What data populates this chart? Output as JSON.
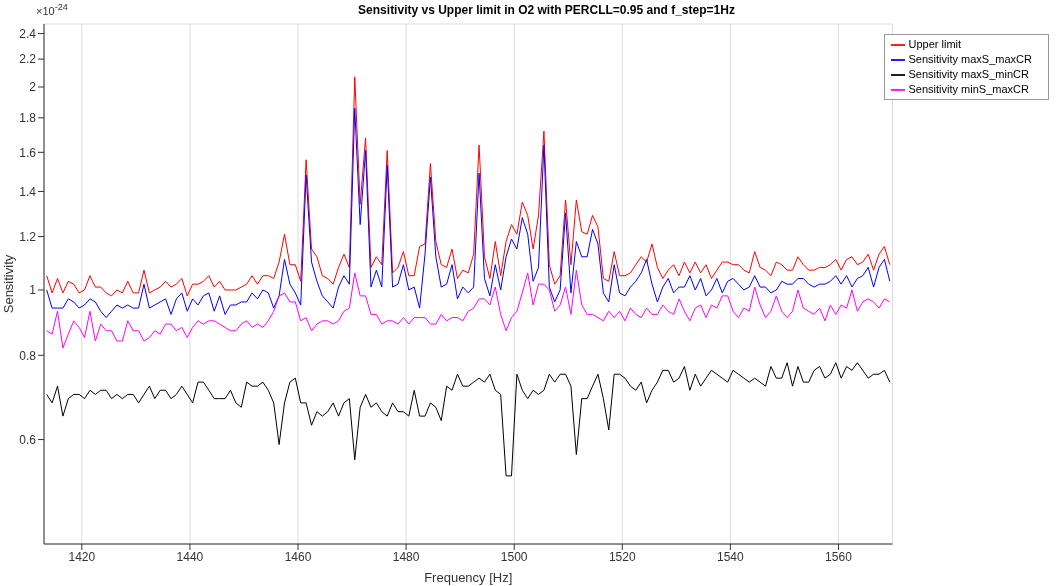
{
  "chart_data": {
    "type": "line",
    "title": "Sensitivity vs Upper limit in O2 with PERCLL=0.95 and f_step=1Hz",
    "xlabel": "Frequency [Hz]",
    "ylabel": "Sensitivity",
    "annotations": [
      "×10$^{-24}$"
    ],
    "x": [
      1413.5,
      1414.5,
      1415.5,
      1416.5,
      1417.5,
      1418.5,
      1419.5,
      1420.5,
      1421.5,
      1422.5,
      1423.5,
      1424.5,
      1425.5,
      1426.5,
      1427.5,
      1428.5,
      1429.5,
      1430.5,
      1431.5,
      1432.5,
      1433.5,
      1434.5,
      1435.5,
      1436.5,
      1437.5,
      1438.5,
      1439.5,
      1440.5,
      1441.5,
      1442.5,
      1443.5,
      1444.5,
      1445.5,
      1446.5,
      1447.5,
      1448.5,
      1449.5,
      1450.5,
      1451.5,
      1452.5,
      1453.5,
      1454.5,
      1455.5,
      1456.5,
      1457.5,
      1458.5,
      1459.5,
      1460.5,
      1461.5,
      1462.5,
      1463.5,
      1464.5,
      1465.5,
      1466.5,
      1467.5,
      1468.5,
      1469.5,
      1470.5,
      1471.5,
      1472.5,
      1473.5,
      1474.5,
      1475.5,
      1476.5,
      1477.5,
      1478.5,
      1479.5,
      1480.5,
      1481.5,
      1482.5,
      1483.5,
      1484.5,
      1485.5,
      1486.5,
      1487.5,
      1488.5,
      1489.5,
      1490.5,
      1491.5,
      1492.5,
      1493.5,
      1494.5,
      1495.5,
      1496.5,
      1497.5,
      1498.5,
      1499.5,
      1500.5,
      1501.5,
      1502.5,
      1503.5,
      1504.5,
      1505.5,
      1506.5,
      1507.5,
      1508.5,
      1509.5,
      1510.5,
      1511.5,
      1512.5,
      1513.5,
      1514.5,
      1515.5,
      1516.5,
      1517.5,
      1518.5,
      1519.5,
      1520.5,
      1521.5,
      1522.5,
      1523.5,
      1524.5,
      1525.5,
      1526.5,
      1527.5,
      1528.5,
      1529.5,
      1530.5,
      1531.5,
      1532.5,
      1533.5,
      1534.5,
      1535.5,
      1536.5,
      1537.5,
      1538.5,
      1539.5,
      1540.5,
      1541.5,
      1542.5,
      1543.5,
      1544.5,
      1545.5,
      1546.5,
      1547.5,
      1548.5,
      1549.5,
      1550.5,
      1551.5,
      1552.5,
      1553.5,
      1554.5,
      1555.5,
      1556.5,
      1557.5,
      1558.5,
      1559.5,
      1560.5,
      1561.5,
      1562.5,
      1563.5,
      1564.5,
      1565.5,
      1566.5,
      1567.5,
      1568.5,
      1569.5
    ],
    "series": [
      {
        "name": "Upper limit",
        "color": "#ff0000",
        "values": [
          1.05,
          0.99,
          1.04,
          0.99,
          1.03,
          1.02,
          0.99,
          1.0,
          1.05,
          1.01,
          1.01,
          0.99,
          0.98,
          1.0,
          0.99,
          1.03,
          0.99,
          0.99,
          1.07,
          0.99,
          1.0,
          1.01,
          1.03,
          1.01,
          1.02,
          1.04,
          0.98,
          1.02,
          1.02,
          1.03,
          1.05,
          1.01,
          1.03,
          1.0,
          1.0,
          1.0,
          1.01,
          1.02,
          1.05,
          1.02,
          1.05,
          1.05,
          1.04,
          1.1,
          1.21,
          1.09,
          1.09,
          1.03,
          1.56,
          1.15,
          1.12,
          1.05,
          1.04,
          1.02,
          1.08,
          1.13,
          1.08,
          2.07,
          1.34,
          1.68,
          1.08,
          1.12,
          1.09,
          1.61,
          1.06,
          1.08,
          1.14,
          1.05,
          1.05,
          1.16,
          1.17,
          1.54,
          1.18,
          1.09,
          1.08,
          1.15,
          1.04,
          1.07,
          1.06,
          1.13,
          1.64,
          1.12,
          1.04,
          1.18,
          1.05,
          1.18,
          1.25,
          1.21,
          1.35,
          1.29,
          1.15,
          1.29,
          1.72,
          1.09,
          1.02,
          1.05,
          1.36,
          1.09,
          1.36,
          1.22,
          1.21,
          1.29,
          1.24,
          1.04,
          1.03,
          1.14,
          1.05,
          1.05,
          1.06,
          1.09,
          1.12,
          1.1,
          1.17,
          1.08,
          1.04,
          1.07,
          1.09,
          1.05,
          1.1,
          1.06,
          1.1,
          1.06,
          1.09,
          1.04,
          1.07,
          1.1,
          1.1,
          1.09,
          1.09,
          1.07,
          1.06,
          1.14,
          1.08,
          1.07,
          1.05,
          1.1,
          1.09,
          1.07,
          1.07,
          1.12,
          1.09,
          1.07,
          1.07,
          1.08,
          1.08,
          1.09,
          1.11,
          1.07,
          1.11,
          1.12,
          1.09,
          1.1,
          1.13,
          1.07,
          1.13,
          1.16,
          1.09
        ]
      },
      {
        "name": "Sensitivity maxS_maxCR",
        "color": "#0000ff",
        "values": [
          1.0,
          0.94,
          0.94,
          0.94,
          0.97,
          0.96,
          0.94,
          0.95,
          0.97,
          0.96,
          0.93,
          0.91,
          0.93,
          0.95,
          0.94,
          0.95,
          0.94,
          0.94,
          1.02,
          0.94,
          0.95,
          0.96,
          0.97,
          0.92,
          0.97,
          0.99,
          0.93,
          0.97,
          0.95,
          0.98,
          0.99,
          0.93,
          0.98,
          0.92,
          0.95,
          0.95,
          0.96,
          0.96,
          0.99,
          0.97,
          1.0,
          0.99,
          0.94,
          0.98,
          1.11,
          1.02,
          0.99,
          0.95,
          1.48,
          1.1,
          1.03,
          0.98,
          0.96,
          0.94,
          1.01,
          1.05,
          1.02,
          1.86,
          1.25,
          1.61,
          1.01,
          1.07,
          1.01,
          1.53,
          1.01,
          1.02,
          1.09,
          1.0,
          1.01,
          0.94,
          1.13,
          1.47,
          1.12,
          1.01,
          1.02,
          1.09,
          0.97,
          1.01,
          0.99,
          1.01,
          1.49,
          1.04,
          0.98,
          1.09,
          1.0,
          1.12,
          1.19,
          1.15,
          1.28,
          1.21,
          1.03,
          1.08,
          1.64,
          1.01,
          0.96,
          1.0,
          1.3,
          0.99,
          1.18,
          1.12,
          1.12,
          1.23,
          1.17,
          0.99,
          0.96,
          1.09,
          0.99,
          0.98,
          1.01,
          1.03,
          1.06,
          1.11,
          1.02,
          0.96,
          1.01,
          1.04,
          0.99,
          1.01,
          1.01,
          1.05,
          1.0,
          1.04,
          0.98,
          1.0,
          1.04,
          0.99,
          1.03,
          1.04,
          1.02,
          1.0,
          1.01,
          1.05,
          1.01,
          1.01,
          0.99,
          1.0,
          1.03,
          1.02,
          1.02,
          1.04,
          1.04,
          1.02,
          1.01,
          1.02,
          1.02,
          1.03,
          1.05,
          1.02,
          1.05,
          1.01,
          1.04,
          1.05,
          1.08,
          1.01,
          1.08,
          1.11,
          1.03
        ]
      },
      {
        "name": "Sensitivity maxS_minCR",
        "color": "#000000",
        "values": [
          0.7,
          0.68,
          0.72,
          0.65,
          0.69,
          0.7,
          0.7,
          0.69,
          0.71,
          0.7,
          0.71,
          0.71,
          0.69,
          0.7,
          0.69,
          0.7,
          0.7,
          0.68,
          0.7,
          0.72,
          0.69,
          0.71,
          0.71,
          0.69,
          0.7,
          0.72,
          0.7,
          0.68,
          0.73,
          0.73,
          0.71,
          0.69,
          0.69,
          0.69,
          0.71,
          0.68,
          0.67,
          0.73,
          0.72,
          0.72,
          0.73,
          0.71,
          0.68,
          0.59,
          0.68,
          0.73,
          0.74,
          0.68,
          0.68,
          0.63,
          0.66,
          0.65,
          0.66,
          0.68,
          0.65,
          0.68,
          0.69,
          0.56,
          0.67,
          0.7,
          0.67,
          0.68,
          0.66,
          0.65,
          0.68,
          0.66,
          0.66,
          0.65,
          0.71,
          0.65,
          0.65,
          0.68,
          0.67,
          0.64,
          0.72,
          0.71,
          0.75,
          0.72,
          0.72,
          0.73,
          0.74,
          0.73,
          0.75,
          0.71,
          0.7,
          0.53,
          0.53,
          0.75,
          0.71,
          0.69,
          0.71,
          0.7,
          0.71,
          0.75,
          0.73,
          0.75,
          0.75,
          0.72,
          0.57,
          0.69,
          0.69,
          0.72,
          0.75,
          0.69,
          0.62,
          0.75,
          0.75,
          0.74,
          0.72,
          0.71,
          0.73,
          0.68,
          0.71,
          0.73,
          0.76,
          0.76,
          0.73,
          0.74,
          0.77,
          0.71,
          0.75,
          0.72,
          0.74,
          0.76,
          0.75,
          0.74,
          0.73,
          0.76,
          0.75,
          0.74,
          0.73,
          0.74,
          0.73,
          0.72,
          0.77,
          0.74,
          0.74,
          0.78,
          0.72,
          0.77,
          0.73,
          0.73,
          0.76,
          0.77,
          0.74,
          0.75,
          0.78,
          0.74,
          0.77,
          0.76,
          0.78,
          0.76,
          0.74,
          0.75,
          0.75,
          0.76,
          0.73
        ]
      },
      {
        "name": "Sensitivity minS_maxCR",
        "color": "#ff00ff",
        "values": [
          0.87,
          0.86,
          0.93,
          0.82,
          0.86,
          0.9,
          0.88,
          0.85,
          0.93,
          0.84,
          0.89,
          0.87,
          0.87,
          0.84,
          0.84,
          0.9,
          0.87,
          0.87,
          0.84,
          0.85,
          0.87,
          0.86,
          0.89,
          0.89,
          0.87,
          0.88,
          0.85,
          0.88,
          0.9,
          0.89,
          0.9,
          0.9,
          0.89,
          0.88,
          0.87,
          0.87,
          0.89,
          0.9,
          0.88,
          0.89,
          0.88,
          0.9,
          0.93,
          0.98,
          0.99,
          0.96,
          0.96,
          0.9,
          0.91,
          0.87,
          0.89,
          0.9,
          0.9,
          0.89,
          0.9,
          0.93,
          0.94,
          1.06,
          0.98,
          0.98,
          0.92,
          0.92,
          0.89,
          0.9,
          0.9,
          0.89,
          0.91,
          0.89,
          0.91,
          0.91,
          0.91,
          0.89,
          0.89,
          0.92,
          0.9,
          0.91,
          0.91,
          0.9,
          0.93,
          0.94,
          0.97,
          0.97,
          0.95,
          1.01,
          0.92,
          0.87,
          0.91,
          0.93,
          0.99,
          1.06,
          0.95,
          1.02,
          1.02,
          1.0,
          0.93,
          0.95,
          1.01,
          0.92,
          1.07,
          0.95,
          0.92,
          0.92,
          0.91,
          0.9,
          0.93,
          0.91,
          0.93,
          0.9,
          0.94,
          0.92,
          0.91,
          0.94,
          0.92,
          0.92,
          0.95,
          0.93,
          0.92,
          0.97,
          0.93,
          0.9,
          0.94,
          0.95,
          0.91,
          0.95,
          0.94,
          0.98,
          0.98,
          0.93,
          0.91,
          0.94,
          0.93,
          1.01,
          0.95,
          0.91,
          0.93,
          0.98,
          0.93,
          0.91,
          0.93,
          1.0,
          0.94,
          0.93,
          0.92,
          0.94,
          0.9,
          0.95,
          0.92,
          0.95,
          0.94,
          1.0,
          0.93,
          0.96,
          0.97,
          0.96,
          0.94,
          0.97,
          0.96
        ]
      }
    ],
    "xlim": [
      1413,
      1570
    ],
    "xticks": [
      1420,
      1440,
      1460,
      1480,
      1500,
      1520,
      1540,
      1560
    ],
    "ylim": [
      0.42,
      2.48
    ],
    "yticks": [
      0.6,
      0.8,
      1,
      1.2,
      1.4,
      1.6,
      1.8,
      2,
      2.2,
      2.4
    ],
    "log": "y",
    "grid": true,
    "legend": "top right",
    "line_style": "solid",
    "marker": "none"
  }
}
